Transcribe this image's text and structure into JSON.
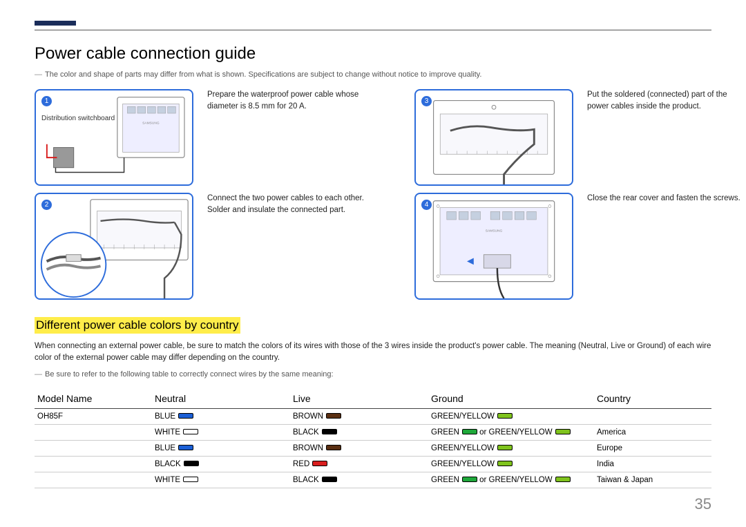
{
  "page": {
    "title": "Power cable connection guide",
    "header_note": "The color and shape of parts may differ from what is shown. Specifications are subject to change without notice to improve quality.",
    "page_number": "35",
    "accent_color": "#1a2d5a",
    "step_color": "#2d6cdb"
  },
  "steps": [
    {
      "num": "1",
      "text": "Prepare the waterproof power cable whose diameter is 8.5 mm for 20 A.",
      "label": "Distribution switchboard"
    },
    {
      "num": "2",
      "text": "Connect the two power cables to each other. Solder and insulate the connected part."
    },
    {
      "num": "3",
      "text": "Put the soldered (connected) part of the power cables inside the product."
    },
    {
      "num": "4",
      "text": "Close the rear cover and fasten the screws."
    }
  ],
  "section": {
    "heading": "Different power cable colors by country",
    "intro": "When connecting an external power cable, be sure to match the colors of its wires with those of the 3 wires inside the product's power cable. The meaning (Neutral, Live or Ground) of each wire color of the external power cable may differ depending on the country.",
    "note": "Be sure to refer to the following table to correctly connect wires by the same meaning:"
  },
  "table": {
    "headers": [
      "Model Name",
      "Neutral",
      "Live",
      "Ground",
      "Country"
    ],
    "rows": [
      {
        "model": "OH85F",
        "neutral": {
          "label": "BLUE",
          "color": "#1b5fd6"
        },
        "live": {
          "label": "BROWN",
          "color": "#5a2f12"
        },
        "ground": {
          "parts": [
            {
              "label": "GREEN/YELLOW",
              "color": "#7fc31d"
            }
          ]
        },
        "country": ""
      },
      {
        "model": "",
        "neutral": {
          "label": "WHITE",
          "color": "#ffffff"
        },
        "live": {
          "label": "BLACK",
          "color": "#000000"
        },
        "ground": {
          "parts": [
            {
              "label": "GREEN",
              "color": "#1fa83a"
            },
            {
              "sep": " or "
            },
            {
              "label": "GREEN/YELLOW",
              "color": "#7fc31d"
            }
          ]
        },
        "country": "America"
      },
      {
        "model": "",
        "neutral": {
          "label": "BLUE",
          "color": "#1b5fd6"
        },
        "live": {
          "label": "BROWN",
          "color": "#5a2f12"
        },
        "ground": {
          "parts": [
            {
              "label": "GREEN/YELLOW",
              "color": "#7fc31d"
            }
          ]
        },
        "country": "Europe"
      },
      {
        "model": "",
        "neutral": {
          "label": "BLACK",
          "color": "#000000"
        },
        "live": {
          "label": "RED",
          "color": "#d91e1e"
        },
        "ground": {
          "parts": [
            {
              "label": "GREEN/YELLOW",
              "color": "#7fc31d"
            }
          ]
        },
        "country": "India"
      },
      {
        "model": "",
        "neutral": {
          "label": "WHITE",
          "color": "#ffffff"
        },
        "live": {
          "label": "BLACK",
          "color": "#000000"
        },
        "ground": {
          "parts": [
            {
              "label": "GREEN",
              "color": "#1fa83a"
            },
            {
              "sep": " or "
            },
            {
              "label": "GREEN/YELLOW",
              "color": "#7fc31d"
            }
          ]
        },
        "country": "Taiwan & Japan"
      }
    ]
  }
}
